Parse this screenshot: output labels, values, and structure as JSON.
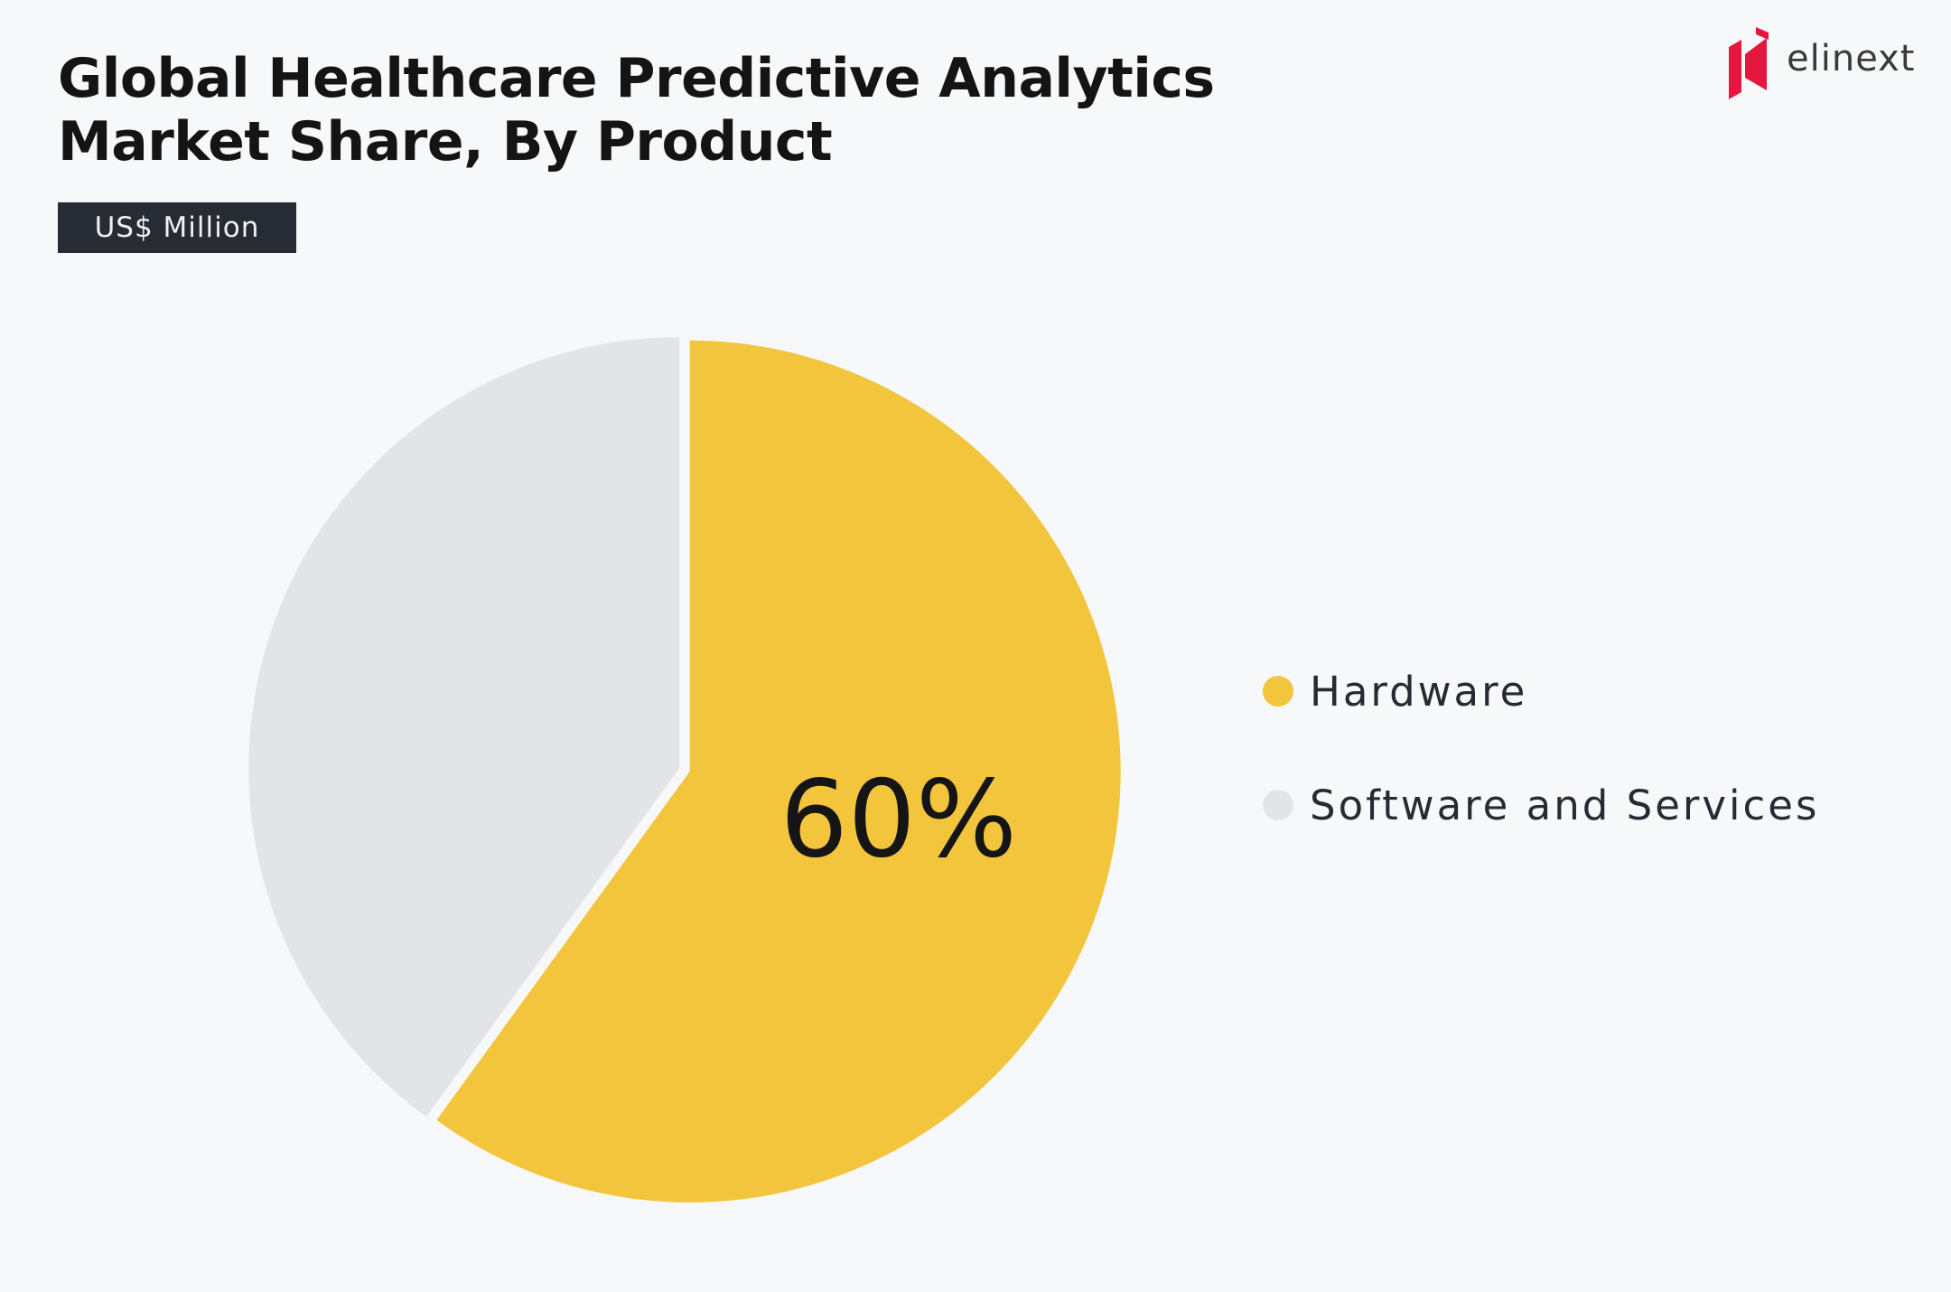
{
  "header": {
    "title_line1": "Global Healthcare Predictive Analytics",
    "title_line2": "Market Share, By Product",
    "unit_badge": "US$ Million"
  },
  "brand": {
    "logo_text": "elinext",
    "logo_color": "#e5173f"
  },
  "colors": {
    "background": "#f7f8f9",
    "hardware": "#f2c53d",
    "software_and_services": "#e3e4e7"
  },
  "chart_data": {
    "type": "pie",
    "title": "Global Healthcare Predictive Analytics Market Share, By Product",
    "subtitle": "US$ Million",
    "legend_position": "right",
    "slices": [
      {
        "label": "Hardware",
        "value": 60,
        "color": "#f2c53d",
        "data_label": "60%"
      },
      {
        "label": "Software and Services",
        "value": 40,
        "color": "#e3e4e7",
        "data_label": ""
      }
    ]
  }
}
